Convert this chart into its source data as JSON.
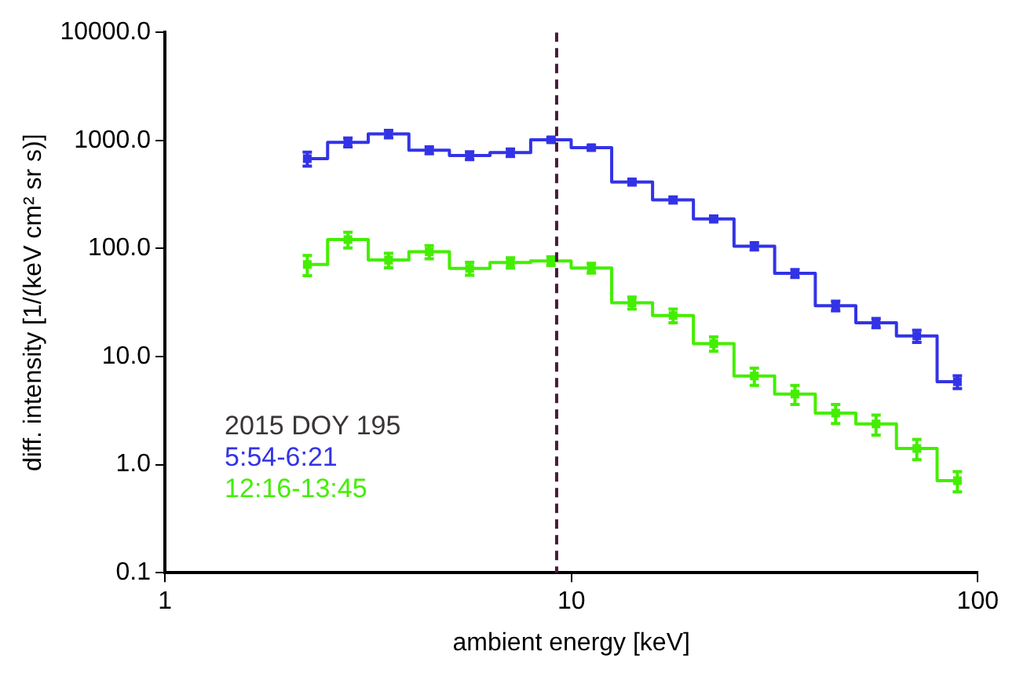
{
  "chart_data": {
    "type": "step",
    "xlabel": "ambient energy [keV]",
    "ylabel": "diff. intensity [1/(keV cm² sr s)]",
    "log": "xy",
    "xlim": [
      1,
      100
    ],
    "xticks": [
      1,
      10,
      100
    ],
    "ylim": [
      0.1,
      10000
    ],
    "yticks": [
      {
        "value": 0.1,
        "label": "0.1"
      },
      {
        "value": 1,
        "label": "1.0"
      },
      {
        "value": 10,
        "label": "10.0"
      },
      {
        "value": 100,
        "label": "100.0"
      },
      {
        "value": 1000,
        "label": "1000.0"
      },
      {
        "value": 10000,
        "label": "10000.0"
      }
    ],
    "grid": false,
    "marker": "square",
    "legend": "bottom left",
    "legend_title": "2015 DOY 195",
    "x": [
      2.24,
      2.82,
      3.55,
      4.47,
      5.62,
      7.08,
      8.91,
      11.2,
      14.1,
      17.8,
      22.4,
      28.2,
      35.5,
      44.7,
      56.2,
      70.8,
      89.1
    ],
    "series": [
      {
        "name": "5:54-6:21",
        "color": "#3333e6",
        "values": [
          679,
          961,
          1148,
          813,
          724,
          771,
          1012,
          857,
          412,
          282,
          188,
          105,
          58.9,
          29.5,
          20.5,
          15.5,
          5.85
        ],
        "errors": [
          100,
          90,
          90,
          60,
          60,
          60,
          50,
          40,
          25,
          18,
          12,
          8,
          5,
          3,
          2,
          2,
          0.8
        ]
      },
      {
        "name": "12:16-13:45",
        "color": "#44ee00",
        "values": [
          71.1,
          121,
          78.2,
          93.3,
          65.5,
          74.1,
          76.6,
          66.1,
          31.5,
          24.0,
          13.2,
          6.6,
          4.5,
          3.0,
          2.38,
          1.41,
          0.71
        ],
        "errors": [
          15,
          20,
          12,
          13,
          9,
          8,
          7,
          7,
          4,
          3.5,
          2,
          1.2,
          0.9,
          0.6,
          0.5,
          0.3,
          0.15
        ]
      }
    ],
    "ref_lines": [
      {
        "axis": "x",
        "value": 9.2,
        "color": "#4b1a3a",
        "line_style": "dashed"
      }
    ]
  }
}
